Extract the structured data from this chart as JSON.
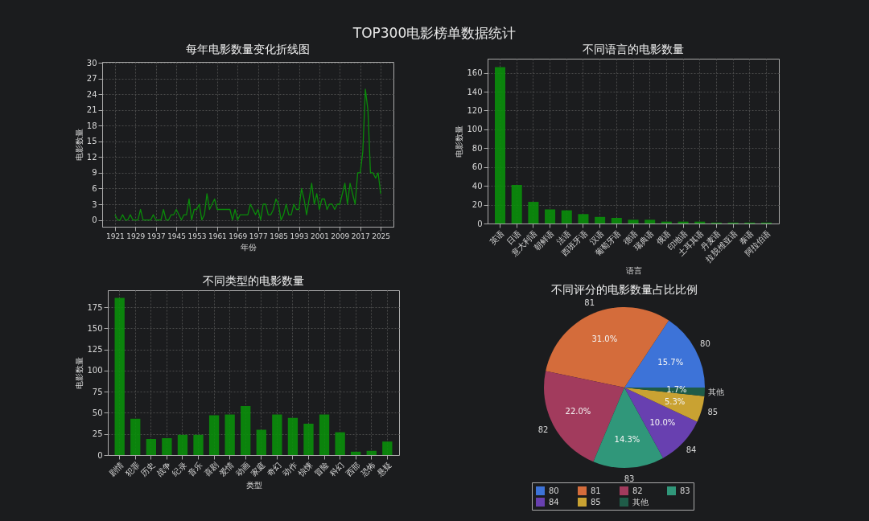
{
  "chart_data": [
    {
      "type": "other",
      "title": "TOP300电影榜单数据统计"
    },
    {
      "type": "line",
      "title": "每年电影数量变化折线图",
      "xlabel": "年份",
      "ylabel": "电影数量",
      "color": "#0a8a0a",
      "x": [
        1921,
        1922,
        1923,
        1924,
        1925,
        1926,
        1927,
        1928,
        1929,
        1930,
        1931,
        1932,
        1933,
        1934,
        1935,
        1936,
        1937,
        1938,
        1939,
        1940,
        1941,
        1942,
        1943,
        1944,
        1945,
        1946,
        1947,
        1948,
        1949,
        1950,
        1951,
        1952,
        1953,
        1954,
        1955,
        1956,
        1957,
        1958,
        1959,
        1960,
        1961,
        1962,
        1963,
        1964,
        1965,
        1966,
        1967,
        1968,
        1969,
        1970,
        1971,
        1972,
        1973,
        1974,
        1975,
        1976,
        1977,
        1978,
        1979,
        1980,
        1981,
        1982,
        1983,
        1984,
        1985,
        1986,
        1987,
        1988,
        1989,
        1990,
        1991,
        1992,
        1993,
        1994,
        1995,
        1996,
        1997,
        1998,
        1999,
        2000,
        2001,
        2002,
        2003,
        2004,
        2005,
        2006,
        2007,
        2008,
        2009,
        2010,
        2011,
        2012,
        2013,
        2014,
        2015,
        2016,
        2017,
        2018,
        2019,
        2020,
        2021,
        2022,
        2023,
        2024,
        2025
      ],
      "values": [
        1,
        0,
        0,
        1,
        0,
        0,
        1,
        0,
        0,
        0,
        2,
        0,
        0,
        0,
        0,
        1,
        0,
        0,
        0,
        2,
        0,
        0,
        1,
        1,
        2,
        1,
        0,
        1,
        1,
        4,
        0,
        2,
        2,
        3,
        0,
        1,
        5,
        2,
        3,
        4,
        2,
        2,
        2,
        2,
        2,
        2,
        0,
        2,
        0,
        1,
        1,
        1,
        1,
        3,
        2,
        1,
        2,
        0,
        3,
        3,
        1,
        1,
        2,
        4,
        3,
        0,
        1,
        3,
        1,
        1,
        3,
        2,
        2,
        6,
        4,
        1,
        4,
        7,
        3,
        5,
        2,
        4,
        4,
        2,
        3,
        3,
        2,
        3,
        3,
        5,
        7,
        3,
        7,
        5,
        3,
        9,
        9,
        13,
        25,
        21,
        9,
        9,
        8,
        9,
        5
      ],
      "xlim": [
        1916,
        2030
      ],
      "xticks": [
        1921,
        1929,
        1937,
        1945,
        1953,
        1961,
        1969,
        1977,
        1985,
        1993,
        2001,
        2009,
        2017,
        2025
      ],
      "ylim": [
        -1.3,
        30.2
      ],
      "yticks": [
        0,
        3,
        6,
        9,
        12,
        15,
        18,
        21,
        24,
        27,
        30
      ],
      "grid": true
    },
    {
      "type": "bar",
      "title": "不同语言的电影数量",
      "xlabel": "语言",
      "ylabel": "电影数量",
      "color": "#0a8f0a",
      "categories": [
        "英语",
        "日语",
        "意大利语",
        "朝鲜语",
        "法语",
        "西班牙语",
        "汉语",
        "葡萄牙语",
        "德语",
        "瑞典语",
        "俄语",
        "印地语",
        "土耳其语",
        "丹麦语",
        "拉脱维亚语",
        "泰语",
        "阿拉伯语"
      ],
      "values": [
        166,
        41,
        23,
        15,
        14,
        10,
        7,
        6,
        4,
        4,
        2,
        2,
        2,
        1,
        1,
        1,
        1
      ],
      "ylim": [
        0,
        175
      ],
      "yticks": [
        0,
        20,
        40,
        60,
        80,
        100,
        120,
        140,
        160
      ],
      "grid": true
    },
    {
      "type": "bar",
      "title": "不同类型的电影数量",
      "xlabel": "类型",
      "ylabel": "电影数量",
      "color": "#0a8f0a",
      "categories": [
        "剧情",
        "犯罪",
        "历史",
        "战争",
        "纪录",
        "音乐",
        "喜剧",
        "爱情",
        "动画",
        "家庭",
        "奇幻",
        "动作",
        "惊悚",
        "冒险",
        "科幻",
        "西部",
        "恐怖",
        "悬疑"
      ],
      "values": [
        186,
        43,
        19,
        20,
        24,
        24,
        47,
        48,
        58,
        30,
        48,
        44,
        37,
        48,
        27,
        4,
        5,
        16
      ],
      "ylim": [
        0,
        195
      ],
      "yticks": [
        0,
        25,
        50,
        75,
        100,
        125,
        150,
        175
      ],
      "grid": true
    },
    {
      "type": "pie",
      "title": "不同评分的电影数量占比比例",
      "legend": "bottom",
      "categories": [
        "80",
        "81",
        "82",
        "83",
        "84",
        "85",
        "其他"
      ],
      "values": [
        15.7,
        31.0,
        22.0,
        14.3,
        10.0,
        5.3,
        1.7
      ],
      "value_labels": [
        "15.7%",
        "31.0%",
        "22.0%",
        "14.3%",
        "10.0%",
        "5.3%",
        "1.7%"
      ],
      "colors": [
        "#3d73d8",
        "#d46c3b",
        "#a23b5d",
        "#30977a",
        "#6840b0",
        "#c9a232",
        "#1f5c48"
      ]
    }
  ]
}
